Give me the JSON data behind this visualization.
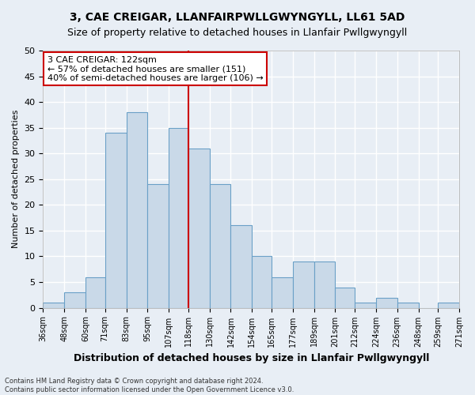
{
  "title1": "3, CAE CREIGAR, LLANFAIRPWLLGWYNGYLL, LL61 5AD",
  "title2": "Size of property relative to detached houses in Llanfair Pwllgwyngyll",
  "xlabel": "Distribution of detached houses by size in Llanfair Pwllgwyngyll",
  "ylabel": "Number of detached properties",
  "footnote": "Contains HM Land Registry data © Crown copyright and database right 2024.\nContains public sector information licensed under the Open Government Licence v3.0.",
  "bar_color": "#c9d9e8",
  "bar_edge_color": "#6aa0c7",
  "background_color": "#e8eef5",
  "grid_color": "#ffffff",
  "vline_color": "#cc0000",
  "vline_x": 118,
  "bin_edges": [
    36,
    48,
    60,
    71,
    83,
    95,
    107,
    118,
    130,
    142,
    154,
    165,
    177,
    189,
    201,
    212,
    224,
    236,
    248,
    259,
    271
  ],
  "counts": [
    1,
    3,
    6,
    34,
    38,
    24,
    35,
    31,
    24,
    16,
    10,
    6,
    9,
    9,
    4,
    1,
    2,
    1,
    0,
    1
  ],
  "ylim": [
    0,
    50
  ],
  "yticks": [
    0,
    5,
    10,
    15,
    20,
    25,
    30,
    35,
    40,
    45,
    50
  ],
  "annotation_title": "3 CAE CREIGAR: 122sqm",
  "annotation_line1": "← 57% of detached houses are smaller (151)",
  "annotation_line2": "40% of semi-detached houses are larger (106) →",
  "annotation_box_color": "#ffffff",
  "annotation_box_edge": "#cc0000",
  "tick_labels": [
    "36sqm",
    "48sqm",
    "60sqm",
    "71sqm",
    "83sqm",
    "95sqm",
    "107sqm",
    "118sqm",
    "130sqm",
    "142sqm",
    "154sqm",
    "165sqm",
    "177sqm",
    "189sqm",
    "201sqm",
    "212sqm",
    "224sqm",
    "236sqm",
    "248sqm",
    "259sqm",
    "271sqm"
  ]
}
